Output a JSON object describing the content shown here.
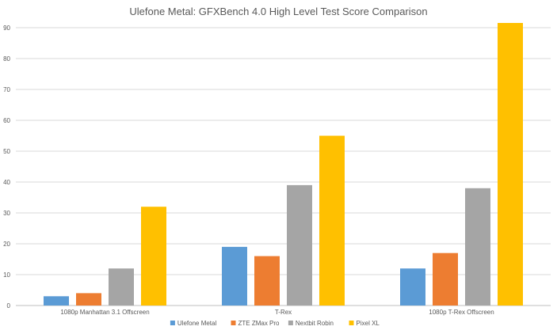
{
  "chart_data": {
    "type": "bar",
    "title": "Ulefone Metal: GFXBench 4.0 High Level Test Score Comparison",
    "xlabel": "",
    "ylabel": "",
    "ylim": [
      0,
      90
    ],
    "yticks": [
      0,
      10,
      20,
      30,
      40,
      50,
      60,
      70,
      80,
      90
    ],
    "grid": true,
    "legend_position": "bottom",
    "categories": [
      "1080p Manhattan 3.1 Offscreen",
      "T-Rex",
      "1080p T-Rex Offscreen"
    ],
    "series": [
      {
        "name": "Ulefone Metal",
        "color": "#5b9bd5",
        "values": [
          3,
          19,
          12
        ]
      },
      {
        "name": "ZTE ZMax Pro",
        "color": "#ed7d31",
        "values": [
          4,
          16,
          17
        ]
      },
      {
        "name": "Nextbit Robin",
        "color": "#a5a5a5",
        "values": [
          12,
          39,
          38
        ]
      },
      {
        "name": "Pixel XL",
        "color": "#ffc000",
        "values": [
          32,
          55,
          92
        ]
      }
    ]
  }
}
